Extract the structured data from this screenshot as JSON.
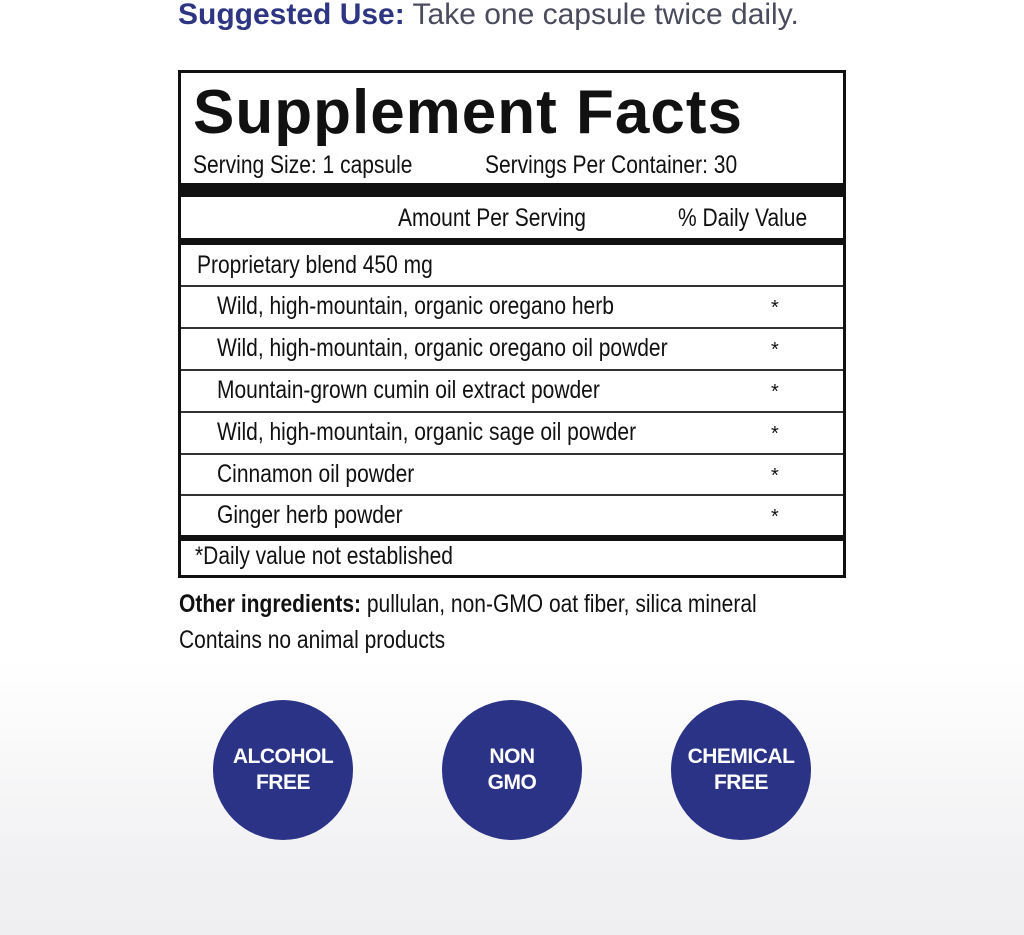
{
  "suggested_use": {
    "label": "Suggested Use:",
    "text": " Take one capsule twice daily."
  },
  "facts": {
    "title": "Supplement Facts",
    "serving_size": "Serving Size: 1 capsule",
    "servings_per_container": "Servings Per Container: 30",
    "amount_header": "Amount Per Serving",
    "dv_header": "% Daily Value",
    "blend": "Proprietary blend  450 mg",
    "ingredients": [
      {
        "name": "Wild, high-mountain, organic oregano herb",
        "dv": "*"
      },
      {
        "name": "Wild, high-mountain, organic oregano oil powder",
        "dv": "*"
      },
      {
        "name": "Mountain-grown cumin oil extract powder",
        "dv": "*"
      },
      {
        "name": "Wild, high-mountain, organic sage oil powder",
        "dv": "*"
      },
      {
        "name": "Cinnamon oil powder",
        "dv": "*"
      },
      {
        "name": "Ginger herb powder",
        "dv": "*"
      }
    ],
    "footnote": "*Daily value not established"
  },
  "other": {
    "label": "Other ingredients:",
    "text": " pullulan, non-GMO oat fiber, silica mineral"
  },
  "contains": "Contains no animal products",
  "badges": [
    {
      "line1": "ALCOHOL",
      "line2": "FREE"
    },
    {
      "line1": "NON",
      "line2": "GMO"
    },
    {
      "line1": "CHEMICAL",
      "line2": "FREE"
    }
  ],
  "colors": {
    "brand": "#2b3386",
    "text": "#111111"
  }
}
